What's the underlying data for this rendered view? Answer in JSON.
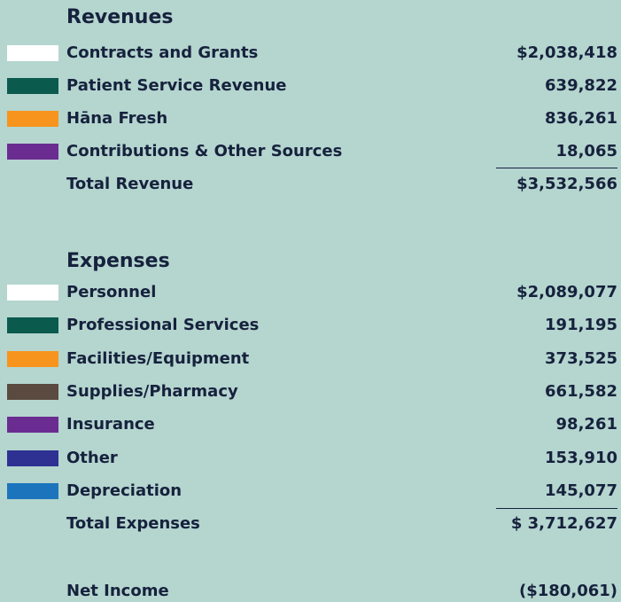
{
  "revenues": {
    "title": "Revenues",
    "items": [
      {
        "label": "Contracts and Grants",
        "value": "$2,038,418",
        "color": "#ffffff"
      },
      {
        "label": "Patient Service Revenue",
        "value": "639,822",
        "color": "#0b5a4e"
      },
      {
        "label": "Hāna Fresh",
        "value": "836,261",
        "color": "#f7941d"
      },
      {
        "label": "Contributions & Other Sources",
        "value": "18,065",
        "color": "#6a2c91"
      }
    ],
    "total": {
      "label": "Total Revenue",
      "value": "$3,532,566"
    }
  },
  "expenses": {
    "title": "Expenses",
    "items": [
      {
        "label": "Personnel",
        "value": "$2,089,077",
        "color": "#ffffff"
      },
      {
        "label": "Professional Services",
        "value": "191,195",
        "color": "#0b5a4e"
      },
      {
        "label": "Facilities/Equipment",
        "value": "373,525",
        "color": "#f7941d"
      },
      {
        "label": "Supplies/Pharmacy",
        "value": "661,582",
        "color": "#5b4a3f"
      },
      {
        "label": "Insurance",
        "value": "98,261",
        "color": "#6a2c91"
      },
      {
        "label": "Other",
        "value": "153,910",
        "color": "#2e3192"
      },
      {
        "label": "Depreciation",
        "value": "145,077",
        "color": "#1c75bc"
      }
    ],
    "total": {
      "label": "Total Expenses",
      "value": "$ 3,712,627"
    }
  },
  "net_income": {
    "label": "Net Income",
    "value": "($180,061)"
  }
}
